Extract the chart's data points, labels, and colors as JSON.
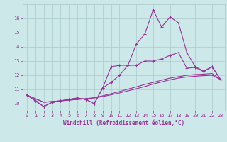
{
  "x": [
    0,
    1,
    2,
    3,
    4,
    5,
    6,
    7,
    8,
    9,
    10,
    11,
    12,
    13,
    14,
    15,
    16,
    17,
    18,
    19,
    20,
    21,
    22,
    23
  ],
  "line1": [
    10.6,
    10.2,
    9.8,
    10.1,
    10.2,
    10.3,
    10.4,
    10.3,
    10.0,
    11.1,
    12.6,
    12.7,
    12.7,
    14.2,
    14.9,
    16.6,
    15.4,
    16.1,
    15.7,
    13.6,
    12.6,
    12.3,
    12.6,
    11.7
  ],
  "line2": [
    10.6,
    10.2,
    9.8,
    10.1,
    10.2,
    10.3,
    10.4,
    10.3,
    10.0,
    11.1,
    11.5,
    12.0,
    12.7,
    12.7,
    13.0,
    13.0,
    13.15,
    13.4,
    13.6,
    12.5,
    12.55,
    12.25,
    12.6,
    11.7
  ],
  "line3": [
    10.6,
    10.35,
    10.1,
    10.15,
    10.2,
    10.25,
    10.3,
    10.35,
    10.4,
    10.5,
    10.62,
    10.75,
    10.9,
    11.05,
    11.2,
    11.38,
    11.53,
    11.68,
    11.8,
    11.88,
    11.93,
    11.97,
    12.0,
    11.7
  ],
  "line4": [
    10.6,
    10.35,
    10.1,
    10.15,
    10.2,
    10.25,
    10.3,
    10.35,
    10.42,
    10.55,
    10.7,
    10.85,
    11.02,
    11.18,
    11.35,
    11.5,
    11.65,
    11.8,
    11.9,
    12.0,
    12.05,
    12.08,
    12.12,
    11.7
  ],
  "line_color": "#993399",
  "bg_color": "#cce8e8",
  "grid_color": "#aacccc",
  "xlabel": "Windchill (Refroidissement éolien,°C)",
  "ylim": [
    9.5,
    17.0
  ],
  "xlim": [
    -0.5,
    23.5
  ],
  "yticks": [
    10,
    11,
    12,
    13,
    14,
    15,
    16
  ],
  "xticks": [
    0,
    1,
    2,
    3,
    4,
    5,
    6,
    7,
    8,
    9,
    10,
    11,
    12,
    13,
    14,
    15,
    16,
    17,
    18,
    19,
    20,
    21,
    22,
    23
  ],
  "tick_fontsize": 5.0,
  "xlabel_fontsize": 5.5
}
